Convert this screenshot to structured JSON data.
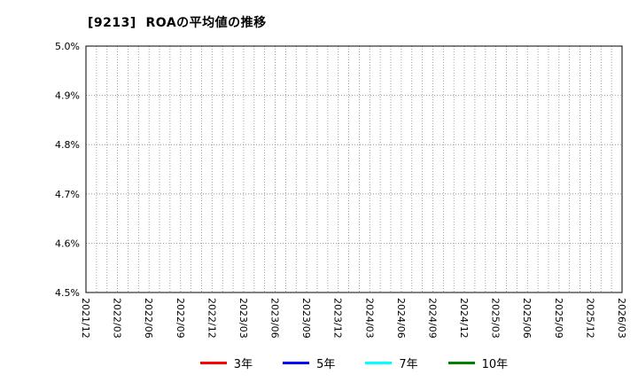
{
  "title": "[9213]  ROAの平均値の推移",
  "chart_data": {
    "type": "line",
    "title": "[9213] ROAの平均値の推移",
    "x_labels": [
      "2021/12",
      "2022/03",
      "2022/06",
      "2022/09",
      "2022/12",
      "2023/03",
      "2023/06",
      "2023/09",
      "2023/12",
      "2024/03",
      "2024/06",
      "2024/09",
      "2024/12",
      "2025/03",
      "2025/06",
      "2025/09",
      "2025/12",
      "2026/03"
    ],
    "x_minor_per_major": 3,
    "ylim": [
      4.5,
      5.0
    ],
    "y_ticks": [
      4.5,
      4.6,
      4.7,
      4.8,
      4.9,
      5.0
    ],
    "y_tick_labels": [
      "4.5%",
      "4.6%",
      "4.7%",
      "4.8%",
      "4.9%",
      "5.0%"
    ],
    "grid": true,
    "grid_style": "dotted",
    "legend_position": "bottom",
    "series": [
      {
        "name": "3年",
        "color": "#ff0000",
        "values": []
      },
      {
        "name": "5年",
        "color": "#0000ff",
        "values": []
      },
      {
        "name": "7年",
        "color": "#00ffff",
        "values": []
      },
      {
        "name": "10年",
        "color": "#008000",
        "values": []
      }
    ],
    "note_visible_data": "plot area is empty (no line series drawn in the visible range)"
  }
}
